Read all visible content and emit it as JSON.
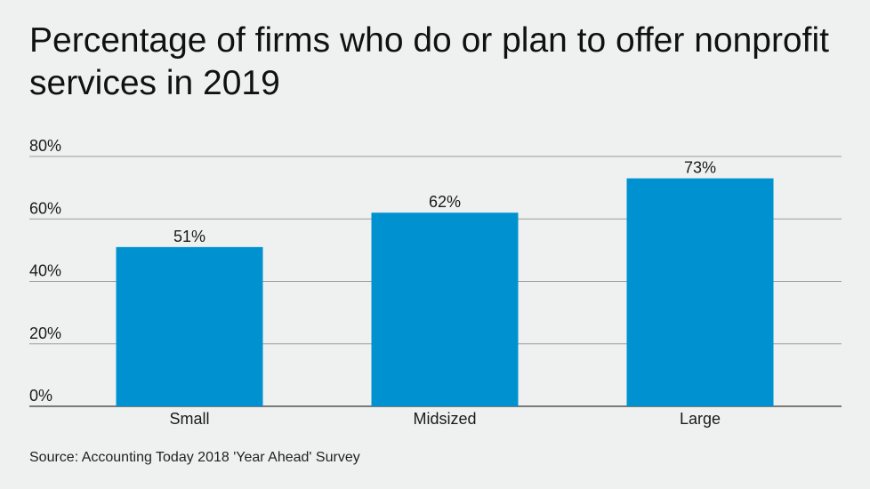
{
  "title": "Percentage of firms who do or plan to offer nonprofit services in 2019",
  "source": "Source: Accounting Today 2018 'Year Ahead' Survey",
  "colors": {
    "bar": "#0092d0",
    "background": "#eff1f0",
    "grid": "#9a9a9a",
    "axis": "#333333"
  },
  "chart_data": {
    "type": "bar",
    "categories": [
      "Small",
      "Midsized",
      "Large"
    ],
    "values": [
      51,
      62,
      73
    ],
    "value_labels": [
      "51%",
      "62%",
      "73%"
    ],
    "y_ticks": [
      0,
      20,
      40,
      60,
      80
    ],
    "y_tick_labels": [
      "0%",
      "20%",
      "40%",
      "60%",
      "80%"
    ],
    "ylim": [
      0,
      80
    ],
    "xlabel": "",
    "ylabel": "",
    "grid": true,
    "legend": "none"
  }
}
